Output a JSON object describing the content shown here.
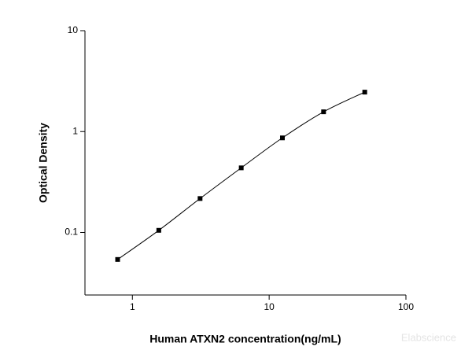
{
  "chart_data": {
    "type": "scatter",
    "x_label": "Human ATXN2 concentration(ng/mL)",
    "y_label": "Optical Density",
    "watermark": "Elabscience",
    "x_log": true,
    "y_log": true,
    "curve": true,
    "xlim": [
      0.45,
      100
    ],
    "xticks": [
      1,
      10,
      100
    ],
    "ylim": [
      0.024,
      10
    ],
    "yticks": [
      0.1,
      1,
      10
    ],
    "series": [
      {
        "color": "#000000",
        "x": [
          0.78,
          1.56,
          3.125,
          6.25,
          12.5,
          25,
          50
        ],
        "values": [
          0.054,
          0.105,
          0.217,
          0.437,
          0.866,
          1.57,
          2.46
        ]
      }
    ]
  }
}
